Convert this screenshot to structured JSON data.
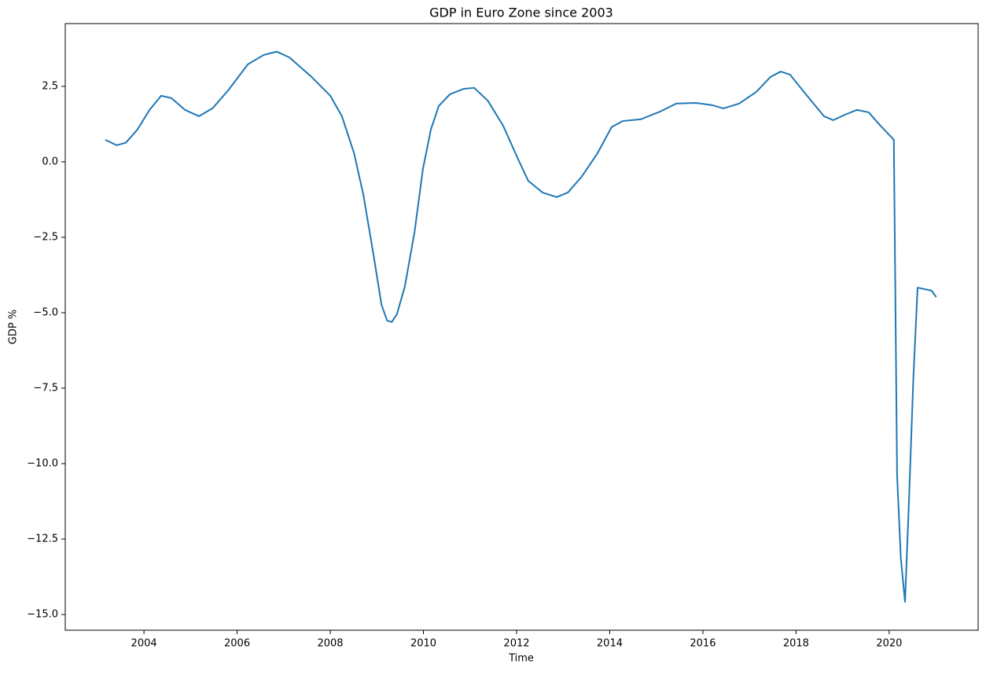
{
  "chart_data": {
    "type": "line",
    "title": "GDP in Euro Zone since 2003",
    "x_label": "Time",
    "y_label": "GDP %",
    "x": [
      2003.17,
      2003.41,
      2003.61,
      2003.86,
      2004.12,
      2004.37,
      2004.59,
      2004.88,
      2005.18,
      2005.47,
      2005.81,
      2006.23,
      2006.57,
      2006.85,
      2007.12,
      2007.58,
      2008.0,
      2008.25,
      2008.51,
      2008.71,
      2008.93,
      2009.1,
      2009.22,
      2009.32,
      2009.43,
      2009.6,
      2009.81,
      2009.99,
      2010.16,
      2010.33,
      2010.57,
      2010.87,
      2011.09,
      2011.38,
      2011.71,
      2012.05,
      2012.25,
      2012.56,
      2012.86,
      2013.1,
      2013.4,
      2013.74,
      2014.04,
      2014.28,
      2014.67,
      2015.09,
      2015.43,
      2015.85,
      2016.19,
      2016.44,
      2016.78,
      2017.15,
      2017.45,
      2017.67,
      2017.87,
      2018.21,
      2018.6,
      2018.8,
      2019.05,
      2019.31,
      2019.56,
      2019.81,
      2020.1,
      2020.17,
      2020.25,
      2020.34,
      2020.42,
      2020.52,
      2020.61,
      2020.91,
      2021.01
    ],
    "series": [
      {
        "name": "GDP",
        "color": "#1f77b4",
        "values": [
          0.73,
          0.55,
          0.63,
          1.07,
          1.72,
          2.19,
          2.11,
          1.72,
          1.51,
          1.77,
          2.37,
          3.23,
          3.54,
          3.65,
          3.46,
          2.84,
          2.19,
          1.51,
          0.29,
          -1.09,
          -3.1,
          -4.74,
          -5.26,
          -5.31,
          -5.05,
          -4.14,
          -2.32,
          -0.23,
          1.07,
          1.85,
          2.24,
          2.42,
          2.45,
          2.03,
          1.2,
          0.03,
          -0.63,
          -1.02,
          -1.17,
          -1.02,
          -0.49,
          0.29,
          1.15,
          1.35,
          1.41,
          1.67,
          1.93,
          1.95,
          1.88,
          1.77,
          1.93,
          2.32,
          2.81,
          2.99,
          2.89,
          2.24,
          1.51,
          1.38,
          1.56,
          1.72,
          1.64,
          1.2,
          0.73,
          -10.39,
          -13.13,
          -14.58,
          -11.43,
          -7.14,
          -4.17,
          -4.27,
          -4.48
        ]
      }
    ],
    "xlim": [
      2002.31,
      2021.91
    ],
    "xticks": [
      2004,
      2006,
      2008,
      2010,
      2012,
      2014,
      2016,
      2018,
      2020
    ],
    "ylim": [
      -15.52,
      4.58
    ],
    "yticks": [
      {
        "value": -15,
        "label": "−15.0"
      },
      {
        "value": -12.5,
        "label": "−12.5"
      },
      {
        "value": -10,
        "label": "−10.0"
      },
      {
        "value": -7.5,
        "label": "−7.5"
      },
      {
        "value": -5,
        "label": "−5.0"
      },
      {
        "value": -2.5,
        "label": "−2.5"
      },
      {
        "value": 0,
        "label": "0.0"
      },
      2.5
    ],
    "grid": false
  }
}
